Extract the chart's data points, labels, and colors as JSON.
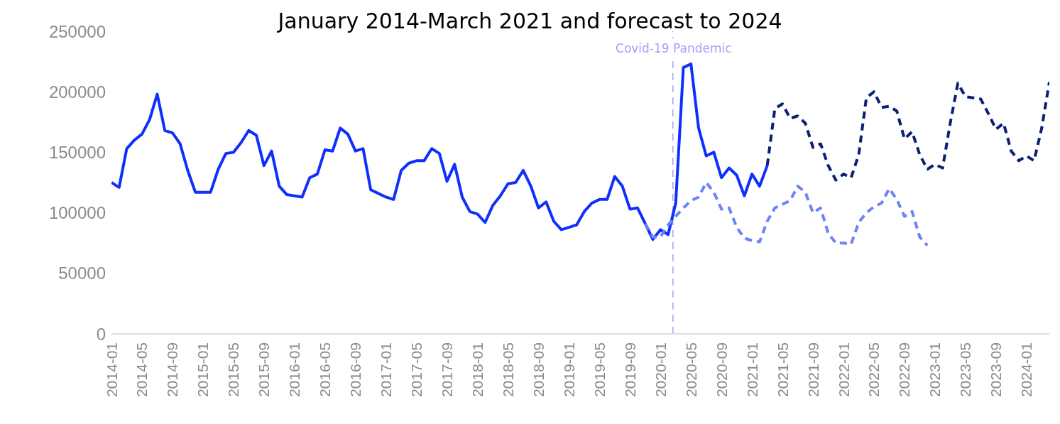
{
  "chart_data": {
    "type": "line",
    "title": "January 2014-March 2021 and forecast to 2024",
    "x": [
      "2014-01",
      "2014-02",
      "2014-03",
      "2014-04",
      "2014-05",
      "2014-06",
      "2014-07",
      "2014-08",
      "2014-09",
      "2014-10",
      "2014-11",
      "2014-12",
      "2015-01",
      "2015-02",
      "2015-03",
      "2015-04",
      "2015-05",
      "2015-06",
      "2015-07",
      "2015-08",
      "2015-09",
      "2015-10",
      "2015-11",
      "2015-12",
      "2016-01",
      "2016-02",
      "2016-03",
      "2016-04",
      "2016-05",
      "2016-06",
      "2016-07",
      "2016-08",
      "2016-09",
      "2016-10",
      "2016-11",
      "2016-12",
      "2017-01",
      "2017-02",
      "2017-03",
      "2017-04",
      "2017-05",
      "2017-06",
      "2017-07",
      "2017-08",
      "2017-09",
      "2017-10",
      "2017-11",
      "2017-12",
      "2018-01",
      "2018-02",
      "2018-03",
      "2018-04",
      "2018-05",
      "2018-06",
      "2018-07",
      "2018-08",
      "2018-09",
      "2018-10",
      "2018-11",
      "2018-12",
      "2019-01",
      "2019-02",
      "2019-03",
      "2019-04",
      "2019-05",
      "2019-06",
      "2019-07",
      "2019-08",
      "2019-09",
      "2019-10",
      "2019-11",
      "2019-12",
      "2020-01",
      "2020-02",
      "2020-03",
      "2020-04",
      "2020-05",
      "2020-06",
      "2020-07",
      "2020-08",
      "2020-09",
      "2020-10",
      "2020-11",
      "2020-12",
      "2021-01",
      "2021-02",
      "2021-03",
      "2021-04",
      "2021-05",
      "2021-06",
      "2021-07",
      "2021-08",
      "2021-09",
      "2021-10",
      "2021-11",
      "2021-12",
      "2022-01",
      "2022-02",
      "2022-03",
      "2022-04",
      "2022-05",
      "2022-06",
      "2022-07",
      "2022-08",
      "2022-09",
      "2022-10",
      "2022-11",
      "2022-12",
      "2023-01",
      "2023-02",
      "2023-03",
      "2023-04",
      "2023-05",
      "2023-06",
      "2023-07",
      "2023-08",
      "2023-09",
      "2023-10",
      "2023-11",
      "2023-12",
      "2024-01",
      "2024-02",
      "2024-03",
      "2024-04"
    ],
    "series": [
      {
        "color": "#0f2fff",
        "line_style": "solid",
        "values": [
          125000,
          121000,
          153000,
          160000,
          165000,
          177000,
          198000,
          168000,
          166000,
          157000,
          135000,
          117000,
          117000,
          117000,
          136000,
          149000,
          150000,
          158000,
          168000,
          164000,
          139000,
          151000,
          122000,
          115000,
          114000,
          113000,
          129000,
          132000,
          152000,
          151000,
          170000,
          165000,
          151000,
          153000,
          119000,
          116000,
          113000,
          111000,
          135000,
          141000,
          143000,
          143000,
          153000,
          149000,
          126000,
          140000,
          113000,
          101000,
          99000,
          92000,
          106000,
          114000,
          124000,
          125000,
          135000,
          122000,
          104000,
          109000,
          93000,
          86000,
          88000,
          90000,
          101000,
          108000,
          111000,
          111000,
          130000,
          122000,
          103000,
          104000,
          91000,
          78000,
          86000,
          82000,
          108000,
          220000,
          223000,
          170000,
          147000,
          150000,
          129000,
          137000,
          131000,
          114000,
          132000,
          122000,
          139000,
          null,
          null,
          null,
          null,
          null,
          null,
          null,
          null,
          null,
          null,
          null,
          null,
          null,
          null,
          null,
          null,
          null,
          null,
          null,
          null,
          null,
          null,
          null,
          null,
          null,
          null,
          null,
          null,
          null,
          null,
          null,
          null,
          null,
          null,
          null,
          null,
          null
        ]
      },
      {
        "color": "#6b84f7",
        "line_style": "dashed",
        "values": [
          null,
          null,
          null,
          null,
          null,
          null,
          null,
          null,
          null,
          null,
          null,
          null,
          null,
          null,
          null,
          null,
          null,
          null,
          null,
          null,
          null,
          null,
          null,
          null,
          null,
          null,
          null,
          null,
          null,
          null,
          null,
          null,
          null,
          null,
          null,
          null,
          null,
          null,
          null,
          null,
          null,
          null,
          null,
          null,
          null,
          null,
          null,
          null,
          null,
          null,
          null,
          null,
          null,
          null,
          null,
          null,
          null,
          null,
          null,
          null,
          null,
          null,
          null,
          null,
          null,
          null,
          null,
          null,
          null,
          null,
          91000,
          80000,
          80000,
          90000,
          97000,
          104000,
          110000,
          113000,
          125000,
          117000,
          103000,
          104000,
          88000,
          79000,
          77000,
          76000,
          93000,
          104000,
          107000,
          110000,
          122000,
          117000,
          100000,
          104000,
          83000,
          75000,
          75000,
          74000,
          92000,
          100000,
          105000,
          108000,
          120000,
          111000,
          97000,
          101000,
          80000,
          73000,
          null,
          null,
          null,
          null,
          null,
          null,
          null,
          null,
          null,
          null,
          null,
          null,
          null,
          null,
          null,
          null
        ]
      },
      {
        "color": "#0b1f75",
        "line_style": "dashed",
        "values": [
          null,
          null,
          null,
          null,
          null,
          null,
          null,
          null,
          null,
          null,
          null,
          null,
          null,
          null,
          null,
          null,
          null,
          null,
          null,
          null,
          null,
          null,
          null,
          null,
          null,
          null,
          null,
          null,
          null,
          null,
          null,
          null,
          null,
          null,
          null,
          null,
          null,
          null,
          null,
          null,
          null,
          null,
          null,
          null,
          null,
          null,
          null,
          null,
          null,
          null,
          null,
          null,
          null,
          null,
          null,
          null,
          null,
          null,
          null,
          null,
          null,
          null,
          null,
          null,
          null,
          null,
          null,
          null,
          null,
          null,
          null,
          null,
          null,
          null,
          null,
          null,
          null,
          null,
          null,
          null,
          null,
          null,
          null,
          null,
          null,
          null,
          139000,
          186000,
          190000,
          178000,
          180000,
          174000,
          154000,
          157000,
          139000,
          127000,
          132000,
          129000,
          148000,
          195000,
          200000,
          187000,
          188000,
          184000,
          161000,
          167000,
          148000,
          136000,
          140000,
          137000,
          174000,
          207000,
          196000,
          195000,
          194000,
          182000,
          169000,
          174000,
          151000,
          143000,
          147000,
          143000,
          170000,
          208000
        ]
      }
    ],
    "xlim": [
      "2014-01",
      "2024-04"
    ],
    "xticks": [
      "2014-01",
      "2014-05",
      "2014-09",
      "2015-01",
      "2015-05",
      "2015-09",
      "2016-01",
      "2016-05",
      "2016-09",
      "2017-01",
      "2017-05",
      "2017-09",
      "2018-01",
      "2018-05",
      "2018-09",
      "2019-01",
      "2019-05",
      "2019-09",
      "2020-01",
      "2020-05",
      "2020-09",
      "2021-01",
      "2021-05",
      "2021-09",
      "2022-01",
      "2022-05",
      "2022-09",
      "2023-01",
      "2023-05",
      "2023-09",
      "2024-01"
    ],
    "ylim": [
      0,
      250000
    ],
    "yticks": [
      0,
      50000,
      100000,
      150000,
      200000,
      250000
    ],
    "ref_lines": [
      {
        "axis": "x",
        "value": "2020-02-20",
        "label": "Covid-19 Pandemic",
        "color": "#a99df5",
        "line_style": "dashed"
      }
    ],
    "grid": false,
    "legend": false
  }
}
